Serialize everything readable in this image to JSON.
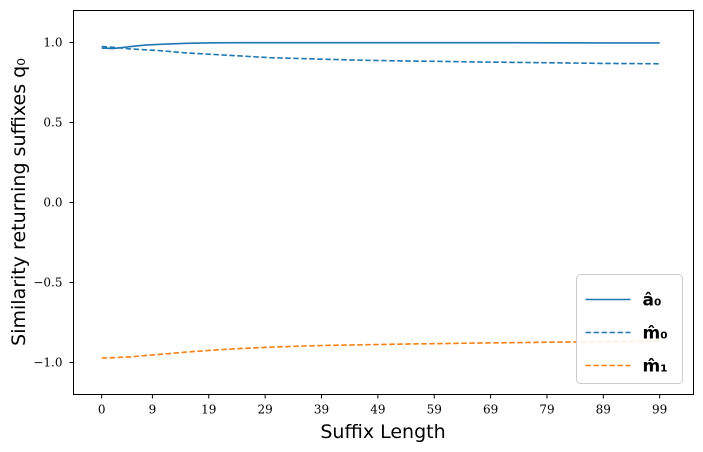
{
  "chart_data": {
    "type": "line",
    "title": "",
    "xlabel": "Suffix Length",
    "ylabel": "Similarity returning suffixes q₀",
    "xlim": [
      -5,
      105
    ],
    "ylim": [
      -1.2,
      1.2
    ],
    "xticks": [
      0,
      9,
      19,
      29,
      39,
      49,
      59,
      69,
      79,
      89,
      99
    ],
    "yticks": [
      -1.0,
      -0.5,
      0.0,
      0.5,
      1.0
    ],
    "ytick_labels": [
      "−1.0",
      "−0.5",
      "0.0",
      "0.5",
      "1.0"
    ],
    "grid": false,
    "legend_position": "bottom-right",
    "series": [
      {
        "name": "â₀",
        "color": "#1f77b4",
        "dash": "solid",
        "x": [
          0,
          2,
          4,
          6,
          8,
          10,
          12,
          15,
          20,
          25,
          30,
          35,
          40,
          50,
          60,
          70,
          80,
          90,
          99
        ],
        "y": [
          0.965,
          0.962,
          0.97,
          0.978,
          0.985,
          0.988,
          0.991,
          0.995,
          0.998,
          0.999,
          0.999,
          0.999,
          0.999,
          0.999,
          0.999,
          0.999,
          0.998,
          0.997,
          0.997
        ]
      },
      {
        "name": "m̂₀",
        "color": "#1f77b4",
        "dash": "dashed",
        "x": [
          0,
          2,
          5,
          10,
          15,
          20,
          25,
          30,
          35,
          40,
          45,
          50,
          55,
          60,
          65,
          70,
          75,
          80,
          85,
          90,
          95,
          99
        ],
        "y": [
          0.975,
          0.97,
          0.96,
          0.95,
          0.935,
          0.925,
          0.915,
          0.905,
          0.9,
          0.895,
          0.89,
          0.887,
          0.884,
          0.882,
          0.879,
          0.877,
          0.875,
          0.873,
          0.871,
          0.869,
          0.868,
          0.867
        ]
      },
      {
        "name": "m̂₁",
        "color": "#ff7f0e",
        "dash": "dashed",
        "x": [
          0,
          2,
          5,
          10,
          15,
          20,
          25,
          30,
          35,
          40,
          45,
          50,
          55,
          60,
          65,
          70,
          75,
          80,
          85,
          90,
          95,
          99
        ],
        "y": [
          -0.972,
          -0.97,
          -0.965,
          -0.95,
          -0.935,
          -0.922,
          -0.912,
          -0.904,
          -0.898,
          -0.893,
          -0.89,
          -0.887,
          -0.884,
          -0.882,
          -0.879,
          -0.877,
          -0.875,
          -0.873,
          -0.871,
          -0.869,
          -0.868,
          -0.867
        ]
      }
    ]
  }
}
